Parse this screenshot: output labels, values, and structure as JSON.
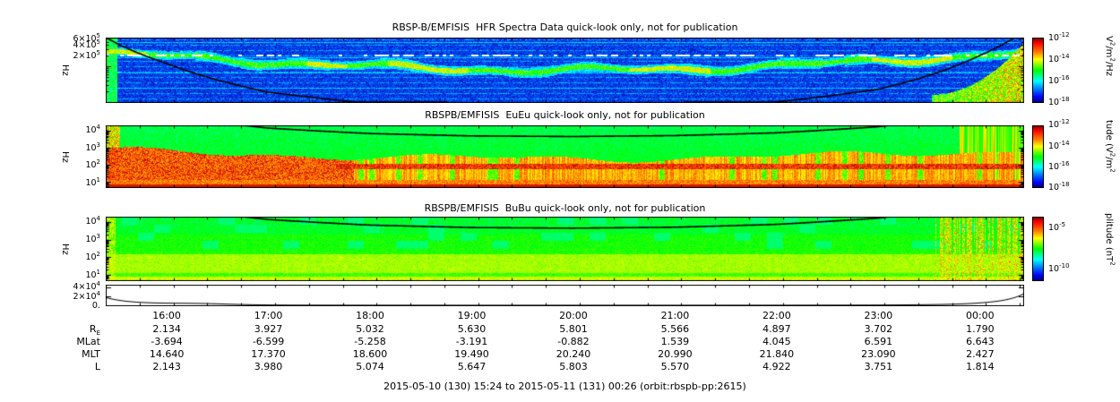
{
  "figure": {
    "caption": "2015-05-10 (130) 15:24 to 2015-05-11 (131) 00:26 (orbit:rbspb-pp:2615)"
  },
  "panels": {
    "hfr": {
      "title": "RBSP-B/EMFISIS  HFR Spectra Data quick-look only, not for publication",
      "ylabel": "Hz",
      "yticks": [
        "6×10^5",
        "4×10^5",
        "2×10^5"
      ],
      "colorbar": {
        "ticks": [
          "10^-12",
          "10^-14",
          "10^-16",
          "10^-18"
        ],
        "unit": "V^2/m^2/Hz"
      }
    },
    "euu": {
      "title": "RBSPB/EMFISIS  EuEu quick-look only, not for publication",
      "ylabel": "Hz",
      "yticks": [
        "10^4",
        "10^3",
        "10^2",
        "10^1"
      ],
      "colorbar": {
        "ticks": [
          "10^-12",
          "10^-14",
          "10^-16",
          "10^-18"
        ],
        "unit": "tude (V^2/m^2"
      }
    },
    "bub": {
      "title": "RBSPB/EMFISIS  BuBu quick-look only, not for publication",
      "ylabel": "Hz",
      "yticks": [
        "10^4",
        "10^3",
        "10^2",
        "10^1"
      ],
      "colorbar": {
        "ticks": [
          "10^-5",
          "10^-10"
        ],
        "unit": "plitude (nT^2"
      }
    },
    "mag": {
      "yticks": [
        "4×10^4",
        "2×10^4",
        "0."
      ]
    }
  },
  "time_axis": {
    "ticks": [
      "16:00",
      "17:00",
      "18:00",
      "19:00",
      "20:00",
      "21:00",
      "22:00",
      "23:00",
      "00:00"
    ],
    "tick_minutes": [
      36,
      96,
      156,
      216,
      276,
      336,
      396,
      456,
      516
    ],
    "duration_minutes": 542
  },
  "ephemeris": {
    "rows": [
      {
        "label": "R_E",
        "values": [
          "2.134",
          "3.927",
          "5.032",
          "5.630",
          "5.801",
          "5.566",
          "4.897",
          "3.702",
          "1.790"
        ]
      },
      {
        "label": "MLat",
        "values": [
          "-3.694",
          "-6.599",
          "-5.258",
          "-3.191",
          "-0.882",
          "1.539",
          "4.045",
          "6.591",
          "6.643"
        ]
      },
      {
        "label": "MLT",
        "values": [
          "14.640",
          "17.370",
          "18.600",
          "19.490",
          "20.240",
          "20.990",
          "21.840",
          "23.090",
          "2.427"
        ]
      },
      {
        "label": "L",
        "values": [
          "2.143",
          "3.980",
          "5.074",
          "5.647",
          "5.803",
          "5.570",
          "4.922",
          "3.751",
          "1.814"
        ]
      }
    ]
  },
  "chart_data": [
    {
      "type": "heatmap",
      "id": "hfr",
      "title": "RBSP-B/EMFISIS  HFR Spectra Data quick-look only, not for publication",
      "ylabel": "Hz",
      "yscale": "log",
      "ylim": [
        10000,
        650000
      ],
      "ytick_labels": [
        "6×10^5",
        "4×10^5",
        "2×10^5"
      ],
      "x_start": "2015-05-10 15:24",
      "x_end": "2015-05-11 00:26",
      "colorbar": {
        "tick_labels": [
          "10^-12",
          "10^-14",
          "10^-16",
          "10^-18"
        ],
        "unit": "V^2/m^2/Hz",
        "position": "right"
      },
      "overlay": "black electron cyclotron frequency trace: starts at top of panel at 15:24, falls below plot range by ~17:50, rises back steeply to top near 00:26",
      "features": [
        "dark blue background with dotted horizontal instrument lines",
        "green upper-hybrid band drifting from ~3×10^5 Hz at start down toward ~1×10^5 Hz near apogee with yellow patches",
        "white dotted artifact line near 2.3×10^5 Hz",
        "broadband yellow-red burst at low frequencies approaching the final perigee"
      ]
    },
    {
      "type": "heatmap",
      "id": "euu",
      "title": "RBSPB/EMFISIS  EuEu quick-look only, not for publication",
      "ylabel": "Hz",
      "yscale": "log",
      "ylim": [
        5,
        20000
      ],
      "ytick_labels": [
        "10^4",
        "10^3",
        "10^2",
        "10^1"
      ],
      "colorbar": {
        "tick_labels": [
          "10^-12",
          "10^-14",
          "10^-16",
          "10^-18"
        ],
        "unit": "tude (V^2/m^2",
        "position": "right"
      },
      "overlay": "black fce trace entering top ~17:25, dipping to ~4×10^3 Hz near apogee (~20:00), exiting top ~22:25",
      "features": [
        "intense red emission from ~30 Hz to ~10^3 Hz, strongest before 17:30",
        "persistent dark red band near 10^2 Hz",
        "solid red band at the bottom rows (~10 Hz)",
        "green background up to 10^4 Hz",
        "noisy red-yellow vertical striping at the final perigee"
      ]
    },
    {
      "type": "heatmap",
      "id": "bub",
      "title": "RBSPB/EMFISIS  BuBu quick-look only, not for publication",
      "ylabel": "Hz",
      "yscale": "log",
      "ylim": [
        5,
        20000
      ],
      "ytick_labels": [
        "10^4",
        "10^3",
        "10^2",
        "10^1"
      ],
      "colorbar": {
        "tick_labels": [
          "10^-5",
          "10^-10"
        ],
        "unit": "plitude (nT^2",
        "position": "right"
      },
      "overlay": "black fce trace entering top ~17:25, dipping to ~4×10^3 Hz near apogee, exiting top ~22:25",
      "features": [
        "green background with yellow-green band between ~30 Hz and ~300 Hz",
        "scattered cyan-blue patches above ~10^3 Hz",
        "thin orange band at bottom rows",
        "orange-red vertical striping at the final perigee"
      ]
    },
    {
      "type": "line",
      "id": "field-magnitude",
      "ylim": [
        0,
        45000
      ],
      "ytick_labels": [
        "4×10^4",
        "2×10^4",
        "0."
      ],
      "description": "bathtub-shaped curve: ~1.7×10^4 at 15:24, small hump near 16:00, near 0 from ~17:00 to ~23:00, rising steeply to ~2.4×10^4 by 00:26",
      "color": "#000000"
    },
    {
      "type": "table",
      "id": "ephemeris",
      "columns": [
        "16:00",
        "17:00",
        "18:00",
        "19:00",
        "20:00",
        "21:00",
        "22:00",
        "23:00",
        "00:00"
      ],
      "rows": [
        {
          "label": "R_E",
          "values": [
            2.134,
            3.927,
            5.032,
            5.63,
            5.801,
            5.566,
            4.897,
            3.702,
            1.79
          ]
        },
        {
          "label": "MLat",
          "values": [
            -3.694,
            -6.599,
            -5.258,
            -3.191,
            -0.882,
            1.539,
            4.045,
            6.591,
            6.643
          ]
        },
        {
          "label": "MLT",
          "values": [
            14.64,
            17.37,
            18.6,
            19.49,
            20.24,
            20.99,
            21.84,
            23.09,
            2.427
          ]
        },
        {
          "label": "L",
          "values": [
            2.143,
            3.98,
            5.074,
            5.647,
            5.803,
            5.57,
            4.922,
            3.751,
            1.814
          ]
        }
      ]
    }
  ]
}
